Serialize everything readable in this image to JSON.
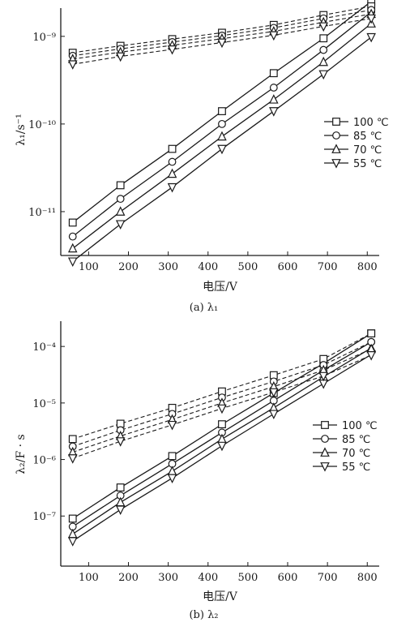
{
  "figure_type": "two stacked semi-log line charts",
  "legend_symbols": {
    "100 ℃": "square",
    "85 ℃": "circle",
    "70 ℃": "triangle-up",
    "55 ℃": "triangle-down"
  },
  "line_styles": {
    "solid": "lower line family",
    "dashed": "upper line family"
  },
  "chart_data": [
    {
      "type": "line",
      "caption": "(a) λ₁",
      "xlabel": "电压/V",
      "ylabel": "λ₁/s⁻¹",
      "yscale": "log",
      "xlim": [
        30,
        830
      ],
      "ylim": [
        3.16e-12,
        2.1e-09
      ],
      "xticks": [
        100,
        200,
        300,
        400,
        500,
        600,
        700,
        800
      ],
      "yticks": [
        {
          "value": 1e-09,
          "label": "10⁻⁹"
        },
        {
          "value": 1e-10,
          "label": "10⁻¹⁰"
        },
        {
          "value": 1e-11,
          "label": "10⁻¹¹"
        }
      ],
      "legend": [
        "100 ℃",
        "85 ℃",
        "70 ℃",
        "55 ℃"
      ],
      "legend_position": "right",
      "grid": false,
      "series": [
        {
          "name": "100 ℃",
          "marker": "square",
          "style": "solid",
          "x": [
            60,
            180,
            310,
            435,
            565,
            690,
            810
          ],
          "y": [
            7.5e-12,
            2e-11,
            5.2e-11,
            1.4e-10,
            3.8e-10,
            9.5e-10,
            2.5e-09
          ]
        },
        {
          "name": "85 ℃",
          "marker": "circle",
          "style": "solid",
          "x": [
            60,
            180,
            310,
            435,
            565,
            690,
            810
          ],
          "y": [
            5.2e-12,
            1.4e-11,
            3.7e-11,
            1e-10,
            2.6e-10,
            7e-10,
            1.9e-09
          ]
        },
        {
          "name": "70 ℃",
          "marker": "triangle-up",
          "style": "solid",
          "x": [
            60,
            180,
            310,
            435,
            565,
            690,
            810
          ],
          "y": [
            3.8e-12,
            1e-11,
            2.7e-11,
            7.2e-11,
            1.9e-10,
            5.1e-10,
            1.4e-09
          ]
        },
        {
          "name": "55 ℃",
          "marker": "triangle-down",
          "style": "solid",
          "x": [
            60,
            180,
            310,
            435,
            565,
            690,
            810
          ],
          "y": [
            2.7e-12,
            7.2e-12,
            1.9e-11,
            5.2e-11,
            1.4e-10,
            3.7e-10,
            9.8e-10
          ]
        },
        {
          "name": "100 ℃",
          "marker": "square",
          "style": "dashed",
          "x": [
            60,
            180,
            310,
            435,
            565,
            690,
            810
          ],
          "y": [
            6.5e-10,
            7.8e-10,
            9.3e-10,
            1.1e-09,
            1.35e-09,
            1.75e-09,
            2.2e-09
          ]
        },
        {
          "name": "85 ℃",
          "marker": "circle",
          "style": "dashed",
          "x": [
            60,
            180,
            310,
            435,
            565,
            690,
            810
          ],
          "y": [
            6e-10,
            7.2e-10,
            8.6e-10,
            1.02e-09,
            1.25e-09,
            1.6e-09,
            2e-09
          ]
        },
        {
          "name": "70 ℃",
          "marker": "triangle-up",
          "style": "dashed",
          "x": [
            60,
            180,
            310,
            435,
            565,
            690,
            810
          ],
          "y": [
            5.5e-10,
            6.6e-10,
            7.9e-10,
            9.4e-10,
            1.14e-09,
            1.45e-09,
            1.8e-09
          ]
        },
        {
          "name": "55 ℃",
          "marker": "triangle-down",
          "style": "dashed",
          "x": [
            60,
            180,
            310,
            435,
            565,
            690,
            810
          ],
          "y": [
            4.8e-10,
            5.9e-10,
            7.1e-10,
            8.5e-10,
            1.03e-09,
            1.3e-09,
            1.6e-09
          ]
        }
      ]
    },
    {
      "type": "line",
      "caption": "(b) λ₂",
      "xlabel": "电压/V",
      "ylabel": "λ₂/F · s",
      "yscale": "log",
      "xlim": [
        30,
        830
      ],
      "ylim": [
        1.3e-08,
        0.00028
      ],
      "xticks": [
        100,
        200,
        300,
        400,
        500,
        600,
        700,
        800
      ],
      "yticks": [
        {
          "value": 0.0001,
          "label": "10⁻⁴"
        },
        {
          "value": 1e-05,
          "label": "10⁻⁵"
        },
        {
          "value": 1e-06,
          "label": "10⁻⁶"
        },
        {
          "value": 1e-07,
          "label": "10⁻⁷"
        }
      ],
      "legend": [
        "100 ℃",
        "85 ℃",
        "70 ℃",
        "55 ℃"
      ],
      "legend_position": "right",
      "grid": false,
      "series": [
        {
          "name": "100 ℃",
          "marker": "square",
          "style": "solid",
          "x": [
            60,
            180,
            310,
            435,
            565,
            690,
            810
          ],
          "y": [
            9e-08,
            3.2e-07,
            1.15e-06,
            4.2e-06,
            1.5e-05,
            5e-05,
            0.00017
          ]
        },
        {
          "name": "85 ℃",
          "marker": "circle",
          "style": "solid",
          "x": [
            60,
            180,
            310,
            435,
            565,
            690,
            810
          ],
          "y": [
            6.5e-08,
            2.3e-07,
            8.4e-07,
            3e-06,
            1.1e-05,
            3.8e-05,
            0.00012
          ]
        },
        {
          "name": "70 ℃",
          "marker": "triangle-up",
          "style": "solid",
          "x": [
            60,
            180,
            310,
            435,
            565,
            690,
            810
          ],
          "y": [
            4.8e-08,
            1.75e-07,
            6.2e-07,
            2.3e-06,
            8.2e-06,
            2.9e-05,
            9.4e-05
          ]
        },
        {
          "name": "55 ℃",
          "marker": "triangle-down",
          "style": "solid",
          "x": [
            60,
            180,
            310,
            435,
            565,
            690,
            810
          ],
          "y": [
            3.6e-08,
            1.3e-07,
            4.7e-07,
            1.75e-06,
            6.4e-06,
            2.2e-05,
            7.2e-05
          ]
        },
        {
          "name": "100 ℃",
          "marker": "square",
          "style": "dashed",
          "x": [
            60,
            180,
            310,
            435,
            565,
            690,
            810
          ],
          "y": [
            2.3e-06,
            4.3e-06,
            8.2e-06,
            1.6e-05,
            3.1e-05,
            6e-05,
            0.00017
          ]
        },
        {
          "name": "85 ℃",
          "marker": "circle",
          "style": "dashed",
          "x": [
            60,
            180,
            310,
            435,
            565,
            690,
            810
          ],
          "y": [
            1.7e-06,
            3.3e-06,
            6.4e-06,
            1.25e-05,
            2.4e-05,
            4.7e-05,
            0.00012
          ]
        },
        {
          "name": "70 ℃",
          "marker": "triangle-up",
          "style": "dashed",
          "x": [
            60,
            180,
            310,
            435,
            565,
            690,
            810
          ],
          "y": [
            1.35e-06,
            2.6e-06,
            5.1e-06,
            1e-05,
            1.95e-05,
            3.8e-05,
            9e-05
          ]
        },
        {
          "name": "55 ℃",
          "marker": "triangle-down",
          "style": "dashed",
          "x": [
            60,
            180,
            310,
            435,
            565,
            690,
            810
          ],
          "y": [
            1.05e-06,
            2.1e-06,
            4.1e-06,
            8e-06,
            1.55e-05,
            3e-05,
            7e-05
          ]
        }
      ]
    }
  ]
}
